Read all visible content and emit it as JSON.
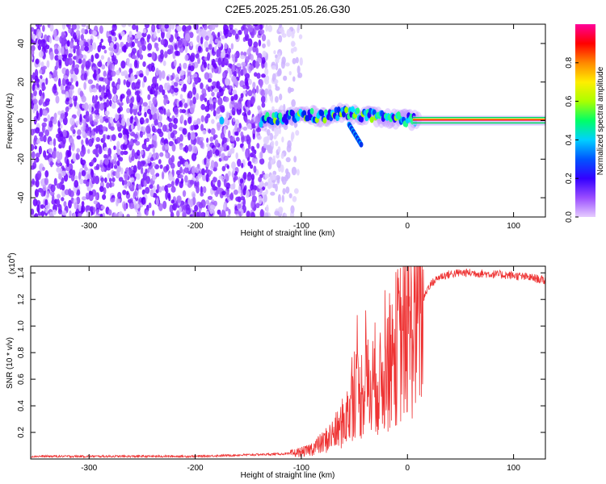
{
  "title": "C2E5.2025.251.05.26.G30",
  "chart_data": [
    {
      "type": "heatmap",
      "xlabel": "Height of straight line (km)",
      "ylabel": "Frequency (Hz)",
      "xlim": [
        -355,
        130
      ],
      "ylim": [
        -50,
        50
      ],
      "xticks": [
        -300,
        -200,
        -100,
        0,
        100
      ],
      "yticks": [
        -40,
        -20,
        0,
        20,
        40
      ],
      "colorbar": {
        "label": "Normalized spectral amplitude",
        "range": [
          0,
          1
        ],
        "ticks": [
          0.0,
          0.2,
          0.4,
          0.6,
          0.8
        ],
        "colors": [
          "#e6ccff",
          "#9a4dff",
          "#3300ff",
          "#0055ff",
          "#00d0ff",
          "#00ff66",
          "#aaff00",
          "#ffee00",
          "#ff8800",
          "#ff0000",
          "#ff0099"
        ]
      },
      "signal_track": {
        "description_points_x": [
          -140,
          -120,
          -100,
          -80,
          -60,
          -40,
          -20,
          0,
          10,
          130
        ],
        "frequency_y": [
          0,
          1,
          3,
          2,
          4,
          3,
          1,
          0.5,
          0,
          0
        ]
      }
    },
    {
      "type": "line",
      "xlabel": "Height of straight line (km)",
      "ylabel": "SNR (10 * v/v)",
      "y_multiplier": "(x10",
      "y_multiplier_exp": "4",
      "xlim": [
        -355,
        130
      ],
      "ylim": [
        0,
        1.45
      ],
      "xticks": [
        -300,
        -200,
        -100,
        0,
        100
      ],
      "yticks": [
        0.2,
        0.4,
        0.6,
        0.8,
        1.0,
        1.2,
        1.4
      ],
      "series": [
        {
          "color": "#ee3333",
          "x": [
            -355,
            -200,
            -110,
            -95,
            -80,
            -65,
            -55,
            -50,
            -45,
            -40,
            -35,
            -30,
            -25,
            -20,
            -15,
            -10,
            -5,
            0,
            5,
            10,
            15,
            20,
            30,
            40,
            50,
            60,
            80,
            100,
            120,
            130
          ],
          "y": [
            0.02,
            0.02,
            0.04,
            0.06,
            0.12,
            0.22,
            0.35,
            0.55,
            0.45,
            0.6,
            0.5,
            0.62,
            0.55,
            0.7,
            0.75,
            0.85,
            0.9,
            0.95,
            1.0,
            1.1,
            1.2,
            1.3,
            1.37,
            1.39,
            1.4,
            1.4,
            1.39,
            1.38,
            1.36,
            1.34
          ]
        }
      ]
    }
  ]
}
